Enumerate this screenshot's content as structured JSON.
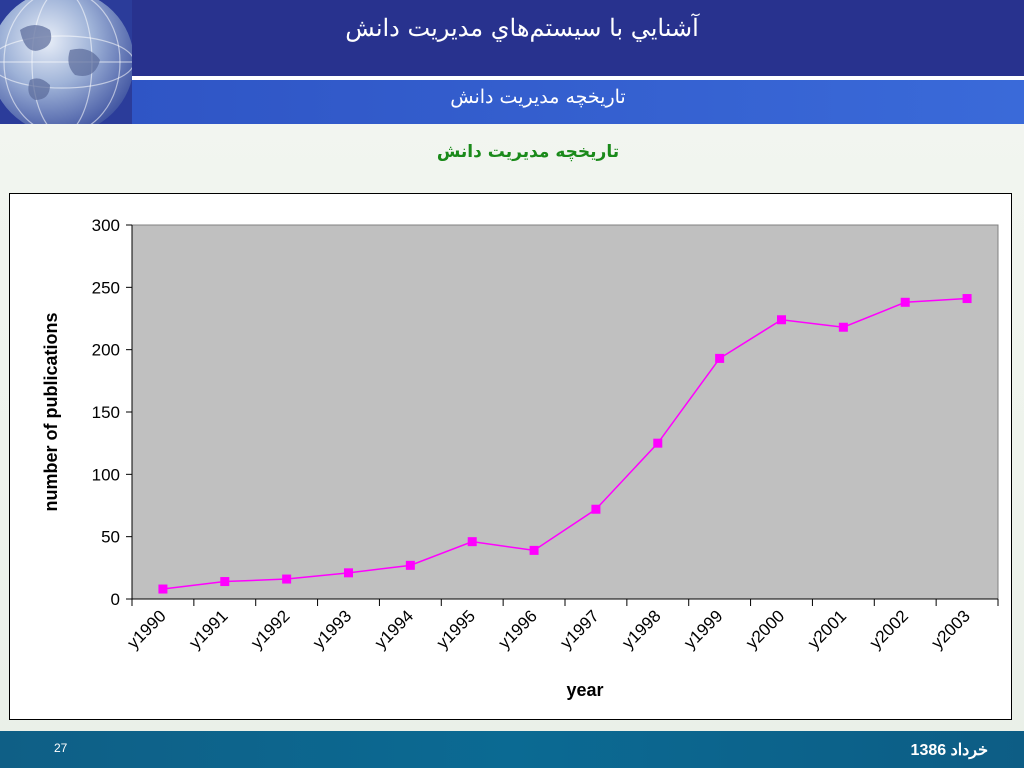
{
  "header": {
    "title": "آشنايي با سيستم‌هاي مديريت دانش",
    "subtitle": "تاريخچه مديريت دانش"
  },
  "slide": {
    "caption": "تاريخچه مديريت دانش"
  },
  "footer": {
    "page_number": "27",
    "date": "خرداد 1386"
  },
  "colors": {
    "header_bg": "#28328e",
    "subheader_bg": "#3461d1",
    "footer_bg": "#0b6a93",
    "caption": "#1a8a1a",
    "series": "#ff00ff",
    "plot_bg": "#c0c0c0"
  },
  "chart_data": {
    "type": "line",
    "title": "",
    "xlabel": "year",
    "ylabel": "number of publications",
    "categories": [
      "y1990",
      "y1991",
      "y1992",
      "y1993",
      "y1994",
      "y1995",
      "y1996",
      "y1997",
      "y1998",
      "y1999",
      "y2000",
      "y2001",
      "y2002",
      "y2003"
    ],
    "series": [
      {
        "values": [
          8,
          14,
          16,
          21,
          27,
          46,
          39,
          72,
          125,
          193,
          224,
          218,
          238,
          241
        ]
      }
    ],
    "ylim": [
      0,
      300
    ],
    "yticks": [
      0,
      50,
      100,
      150,
      200,
      250,
      300
    ],
    "grid": false,
    "legend": "none",
    "marker": "square"
  }
}
